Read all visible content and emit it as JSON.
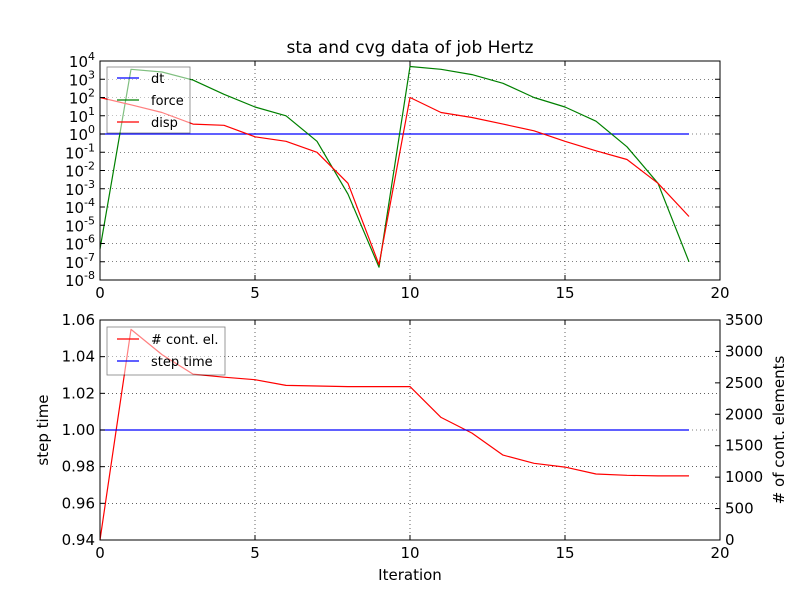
{
  "chart_data": [
    {
      "type": "line",
      "title": "sta and cvg data of job Hertz",
      "yscale": "log",
      "xlim": [
        0,
        20
      ],
      "ylim_exponents": [
        -8,
        4
      ],
      "grid": true,
      "legend_position": "top-left",
      "x_ticks": [
        "0",
        "5",
        "10",
        "15",
        "20"
      ],
      "y_tick_exponents": [
        -8,
        -7,
        -6,
        -5,
        -4,
        -3,
        -2,
        -1,
        0,
        1,
        2,
        3,
        4
      ],
      "y_tick_base": "10",
      "x": [
        0,
        1,
        2,
        3,
        4,
        5,
        6,
        7,
        8,
        9,
        10,
        11,
        12,
        13,
        14,
        15,
        16,
        17,
        18,
        19
      ],
      "series": [
        {
          "name": "dt",
          "color": "#0000ff",
          "values": [
            1,
            1,
            1,
            1,
            1,
            1,
            1,
            1,
            1,
            1,
            1,
            1,
            1,
            1,
            1,
            1,
            1,
            1,
            1,
            1
          ]
        },
        {
          "name": "force",
          "color": "#008000",
          "values": [
            5e-07,
            3500,
            2500,
            900,
            150,
            30,
            10,
            0.4,
            0.0005,
            5e-08,
            5000,
            3500,
            1800,
            600,
            100,
            30,
            5,
            0.2,
            0.002,
            1e-07
          ]
        },
        {
          "name": "disp",
          "color": "#ff0000",
          "values": [
            100,
            40,
            15,
            3.5,
            3,
            0.7,
            0.4,
            0.1,
            0.002,
            7e-08,
            100,
            15,
            8,
            3.5,
            1.5,
            0.4,
            0.12,
            0.04,
            0.002,
            3e-05
          ]
        }
      ]
    },
    {
      "type": "line",
      "xlabel": "Iteration",
      "ylabel": "step time",
      "ylabel_right": "# of cont. elements",
      "xlim": [
        0,
        20
      ],
      "ylim": [
        0.94,
        1.06
      ],
      "ylim_right": [
        0,
        3500
      ],
      "grid": true,
      "legend_position": "top-left",
      "x_ticks": [
        "0",
        "5",
        "10",
        "15",
        "20"
      ],
      "y_ticks": [
        "0.94",
        "0.96",
        "0.98",
        "1.00",
        "1.02",
        "1.04",
        "1.06"
      ],
      "y_ticks_right": [
        "0",
        "500",
        "1000",
        "1500",
        "2000",
        "2500",
        "3000",
        "3500"
      ],
      "x": [
        0,
        1,
        2,
        3,
        4,
        5,
        6,
        7,
        8,
        9,
        10,
        11,
        12,
        13,
        14,
        15,
        16,
        17,
        18,
        19
      ],
      "series": [
        {
          "name": "# cont. el.",
          "color": "#ff0000",
          "axis": "right",
          "values": [
            0,
            3350,
            2950,
            2640,
            2590,
            2550,
            2460,
            2450,
            2440,
            2440,
            2440,
            1950,
            1700,
            1350,
            1220,
            1160,
            1050,
            1030,
            1020,
            1020
          ]
        },
        {
          "name": "step time",
          "color": "#0000ff",
          "axis": "left",
          "values": [
            1.0,
            1.0,
            1.0,
            1.0,
            1.0,
            1.0,
            1.0,
            1.0,
            1.0,
            1.0,
            1.0,
            1.0,
            1.0,
            1.0,
            1.0,
            1.0,
            1.0,
            1.0,
            1.0,
            1.0
          ]
        }
      ]
    }
  ]
}
